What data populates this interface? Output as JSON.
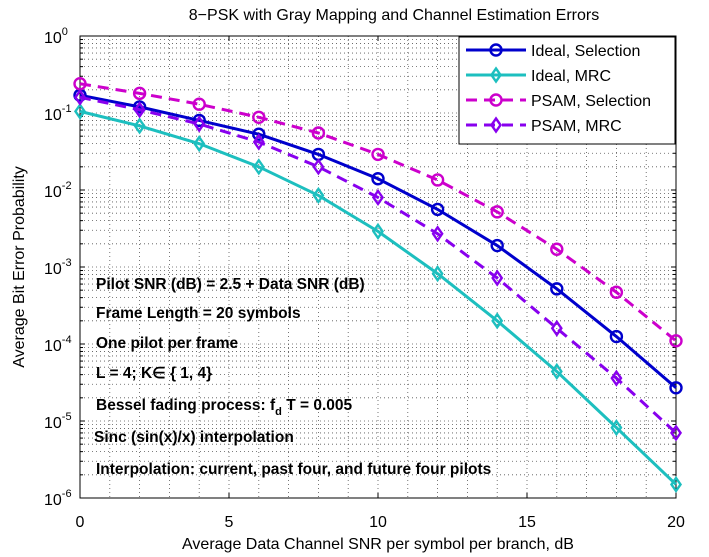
{
  "chart_data": {
    "type": "line",
    "title": "8−PSK with Gray Mapping and Channel Estimation Errors",
    "xlabel": "Average Data Channel SNR per symbol per branch, dB",
    "ylabel": "Average Bit Error Probability",
    "xlim": [
      0,
      20
    ],
    "ylim_log10": [
      -6,
      0
    ],
    "y_scale": "log",
    "grid": true,
    "legend_position": "top-right",
    "x_ticks": [
      0,
      5,
      10,
      15,
      20
    ],
    "x_tick_labels": [
      "0",
      "5",
      "10",
      "15",
      "20"
    ],
    "y_tick_base": "10",
    "y_tick_exponents": [
      "0",
      "-1",
      "-2",
      "-3",
      "-4",
      "-5",
      "-6"
    ],
    "x": [
      0,
      2,
      4,
      6,
      8,
      10,
      12,
      14,
      16,
      18,
      20
    ],
    "series": [
      {
        "name": "Ideal, Selection",
        "color": "#0000cc",
        "dash": false,
        "marker": "circle",
        "values": [
          0.17,
          0.12,
          0.08,
          0.053,
          0.029,
          0.014,
          0.0056,
          0.0019,
          0.00052,
          0.000125,
          2.7e-05
        ]
      },
      {
        "name": "Ideal, MRC",
        "color": "#1dbfbf",
        "dash": false,
        "marker": "diamond",
        "values": [
          0.105,
          0.068,
          0.04,
          0.02,
          0.0085,
          0.0029,
          0.00082,
          0.0002,
          4.4e-05,
          8.2e-06,
          1.5e-06
        ]
      },
      {
        "name": "PSAM, Selection",
        "color": "#cc00cc",
        "dash": true,
        "marker": "circle",
        "values": [
          0.24,
          0.18,
          0.13,
          0.088,
          0.055,
          0.029,
          0.0135,
          0.0052,
          0.0017,
          0.00047,
          0.00011
        ]
      },
      {
        "name": "PSAM, MRC",
        "color": "#8800ee",
        "dash": true,
        "marker": "diamond",
        "values": [
          0.16,
          0.11,
          0.072,
          0.042,
          0.02,
          0.008,
          0.0027,
          0.00072,
          0.00016,
          3.6e-05,
          7e-06
        ]
      }
    ],
    "annotations": [
      "Pilot SNR (dB) = 2.5 + Data SNR (dB)",
      "Frame Length = 20 symbols",
      "One pilot per frame",
      "L = 4; K∈ { 1, 4}",
      "Bessel fading process: f",
      "d",
      " T = 0.005",
      "Sinc (sin(x)/x) interpolation",
      "Interpolation: current, past four, and future four pilots"
    ]
  }
}
